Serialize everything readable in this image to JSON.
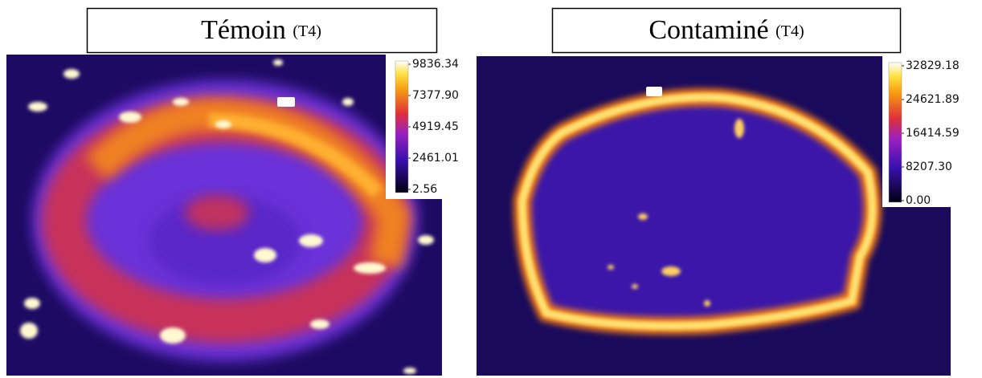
{
  "panels": [
    {
      "title": "Témoin",
      "subtitle": "(T4)",
      "colorbar": {
        "ticks": [
          "9836.34",
          "7377.90",
          "4919.45",
          "2461.01",
          "2.56"
        ]
      }
    },
    {
      "title": "Contaminé",
      "subtitle": "(T4)",
      "colorbar": {
        "ticks": [
          "32829.18",
          "24621.89",
          "16414.59",
          "8207.30",
          "0.00"
        ]
      }
    }
  ]
}
